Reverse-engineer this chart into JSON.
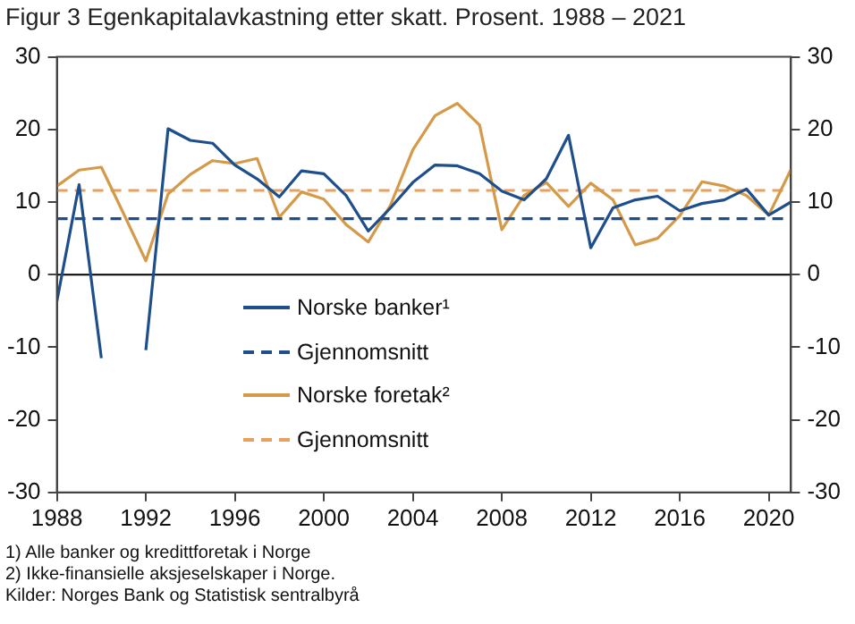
{
  "chart_data": {
    "type": "line",
    "title": "Figur 3 Egenkapitalavkastning etter skatt. Prosent. 1988 – 2021",
    "x": [
      1988,
      1989,
      1990,
      1991,
      1992,
      1993,
      1994,
      1995,
      1996,
      1997,
      1998,
      1999,
      2000,
      2001,
      2002,
      2003,
      2004,
      2005,
      2006,
      2007,
      2008,
      2009,
      2010,
      2011,
      2012,
      2013,
      2014,
      2015,
      2016,
      2017,
      2018,
      2019,
      2020,
      2021
    ],
    "series": [
      {
        "name": "Norske banker¹",
        "color": "#1f4e8c",
        "line_style": "solid",
        "values": [
          -3.7,
          12.4,
          -11.5,
          null,
          -10.4,
          20.1,
          18.5,
          18.1,
          15.1,
          13.2,
          10.7,
          14.3,
          13.9,
          10.9,
          6.0,
          9.2,
          12.7,
          15.1,
          15.0,
          13.9,
          11.5,
          10.3,
          13.2,
          19.2,
          3.7,
          9.2,
          10.3,
          10.8,
          8.8,
          9.8,
          10.3,
          11.8,
          8.2,
          10.0
        ]
      },
      {
        "name": "Gjennomsnitt",
        "color": "#1f4e8c",
        "line_style": "dashed",
        "values": [
          7.7,
          7.7,
          7.7,
          7.7,
          7.7,
          7.7,
          7.7,
          7.7,
          7.7,
          7.7,
          7.7,
          7.7,
          7.7,
          7.7,
          7.7,
          7.7,
          7.7,
          7.7,
          7.7,
          7.7,
          7.7,
          7.7,
          7.7,
          7.7,
          7.7,
          7.7,
          7.7,
          7.7,
          7.7,
          7.7,
          7.7,
          7.7,
          7.7,
          7.7
        ]
      },
      {
        "name": "Norske foretak²",
        "color": "#d49a4a",
        "line_style": "solid",
        "values": [
          12.2,
          14.4,
          14.8,
          8.4,
          1.9,
          11.1,
          13.8,
          15.7,
          15.3,
          16.0,
          7.9,
          11.4,
          10.4,
          6.9,
          4.5,
          9.6,
          17.2,
          21.9,
          23.6,
          20.6,
          6.2,
          10.9,
          12.7,
          9.4,
          12.6,
          10.3,
          4.1,
          5.0,
          8.1,
          12.8,
          12.2,
          10.9,
          8.2,
          14.5
        ]
      },
      {
        "name": "Gjennomsnitt",
        "color": "#e8a060",
        "line_style": "dashed",
        "values": [
          11.6,
          11.6,
          11.6,
          11.6,
          11.6,
          11.6,
          11.6,
          11.6,
          11.6,
          11.6,
          11.6,
          11.6,
          11.6,
          11.6,
          11.6,
          11.6,
          11.6,
          11.6,
          11.6,
          11.6,
          11.6,
          11.6,
          11.6,
          11.6,
          11.6,
          11.6,
          11.6,
          11.6,
          11.6,
          11.6,
          11.6,
          11.6,
          11.6,
          11.6
        ]
      }
    ],
    "xlim": [
      1988,
      2021
    ],
    "xticks": [
      1988,
      1992,
      1996,
      2000,
      2004,
      2008,
      2012,
      2016,
      2020
    ],
    "ylim": [
      -30,
      30
    ],
    "yticks": [
      -30,
      -20,
      -10,
      0,
      10,
      20,
      30
    ],
    "y2lim": [
      -30,
      30
    ],
    "y2ticks": [
      -30,
      -20,
      -10,
      0,
      10,
      20,
      30
    ],
    "ref_lines": [
      {
        "axis": "y",
        "value": 0,
        "color": "#000000"
      }
    ],
    "grid": false,
    "legend": "left",
    "marker": "none",
    "annotations": [
      "1) Alle banker og kredittforetak i Norge",
      "2) Ikke-finansielle aksjeselskaper i Norge.",
      "Kilder: Norges Bank og Statistisk sentralbyrå"
    ]
  }
}
